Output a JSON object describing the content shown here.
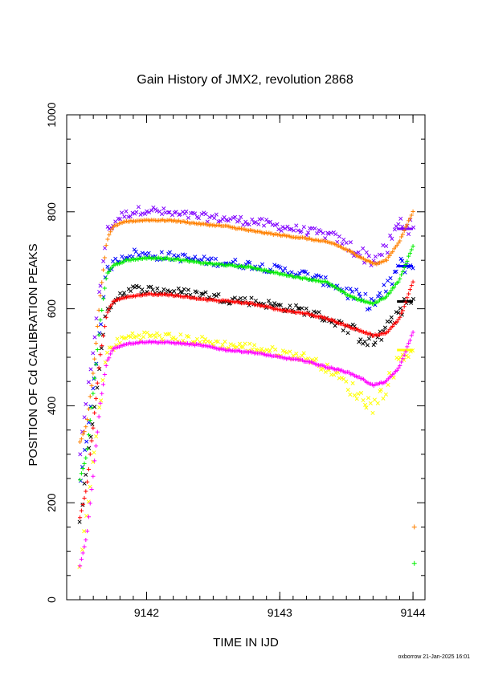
{
  "chart_data": {
    "type": "scatter",
    "title": "Gain History of JMX2, revolution 2868",
    "xlabel": "TIME IN IJD",
    "ylabel": "POSITION OF Cd CALIBRATION PEAKS",
    "xlim": [
      9141.4,
      9144.09
    ],
    "ylim": [
      0,
      1000
    ],
    "x_ticks": [
      9142,
      9143,
      9144
    ],
    "y_ticks": [
      0,
      200,
      400,
      600,
      800,
      1000
    ],
    "x_tick_labels": [
      "9142",
      "9143",
      "9144"
    ],
    "y_tick_labels": [
      "0",
      "200",
      "400",
      "600",
      "800",
      "1000"
    ],
    "grid": false,
    "series": [
      {
        "color": "#ff8000",
        "marker": "plus",
        "kind": "smooth",
        "points": [
          [
            9141.5,
            325
          ],
          [
            9141.55,
            360
          ],
          [
            9141.6,
            470
          ],
          [
            9141.65,
            620
          ],
          [
            9141.7,
            740
          ],
          [
            9141.75,
            770
          ],
          [
            9141.85,
            780
          ],
          [
            9142.0,
            783
          ],
          [
            9142.2,
            782
          ],
          [
            9142.4,
            775
          ],
          [
            9142.6,
            770
          ],
          [
            9142.8,
            760
          ],
          [
            9143.0,
            752
          ],
          [
            9143.2,
            745
          ],
          [
            9143.4,
            735
          ],
          [
            9143.55,
            715
          ],
          [
            9143.65,
            700
          ],
          [
            9143.72,
            692
          ],
          [
            9143.8,
            700
          ],
          [
            9143.9,
            740
          ],
          [
            9144.0,
            800
          ]
        ]
      },
      {
        "color": "#00ee00",
        "marker": "plus",
        "kind": "smooth",
        "points": [
          [
            9141.5,
            248
          ],
          [
            9141.55,
            300
          ],
          [
            9141.6,
            430
          ],
          [
            9141.65,
            570
          ],
          [
            9141.7,
            670
          ],
          [
            9141.75,
            690
          ],
          [
            9141.85,
            700
          ],
          [
            9142.0,
            705
          ],
          [
            9142.2,
            703
          ],
          [
            9142.4,
            695
          ],
          [
            9142.6,
            690
          ],
          [
            9142.8,
            685
          ],
          [
            9143.0,
            672
          ],
          [
            9143.2,
            662
          ],
          [
            9143.35,
            655
          ],
          [
            9143.5,
            630
          ],
          [
            9143.6,
            618
          ],
          [
            9143.7,
            610
          ],
          [
            9143.8,
            625
          ],
          [
            9143.9,
            660
          ],
          [
            9144.0,
            730
          ]
        ]
      },
      {
        "color": "#ff0000",
        "marker": "plus",
        "kind": "smooth",
        "points": [
          [
            9141.5,
            170
          ],
          [
            9141.55,
            230
          ],
          [
            9141.6,
            360
          ],
          [
            9141.65,
            500
          ],
          [
            9141.7,
            590
          ],
          [
            9141.75,
            615
          ],
          [
            9141.85,
            625
          ],
          [
            9142.0,
            630
          ],
          [
            9142.2,
            628
          ],
          [
            9142.4,
            620
          ],
          [
            9142.6,
            616
          ],
          [
            9142.8,
            610
          ],
          [
            9143.0,
            598
          ],
          [
            9143.2,
            590
          ],
          [
            9143.35,
            580
          ],
          [
            9143.5,
            565
          ],
          [
            9143.6,
            555
          ],
          [
            9143.7,
            545
          ],
          [
            9143.8,
            550
          ],
          [
            9143.9,
            580
          ],
          [
            9144.0,
            655
          ]
        ]
      },
      {
        "color": "#ff00ff",
        "marker": "plus",
        "kind": "smooth",
        "points": [
          [
            9141.5,
            70
          ],
          [
            9141.55,
            130
          ],
          [
            9141.6,
            260
          ],
          [
            9141.65,
            400
          ],
          [
            9141.7,
            490
          ],
          [
            9141.75,
            518
          ],
          [
            9141.85,
            528
          ],
          [
            9142.0,
            532
          ],
          [
            9142.2,
            530
          ],
          [
            9142.4,
            525
          ],
          [
            9142.6,
            515
          ],
          [
            9142.8,
            510
          ],
          [
            9143.0,
            500
          ],
          [
            9143.2,
            492
          ],
          [
            9143.35,
            480
          ],
          [
            9143.5,
            470
          ],
          [
            9143.6,
            458
          ],
          [
            9143.7,
            442
          ],
          [
            9143.8,
            450
          ],
          [
            9143.9,
            480
          ],
          [
            9144.0,
            552
          ]
        ]
      },
      {
        "color": "#8000ff",
        "marker": "cross",
        "kind": "scatter",
        "points": [
          [
            9141.5,
            300
          ],
          [
            9141.6,
            520
          ],
          [
            9141.7,
            760
          ],
          [
            9141.8,
            790
          ],
          [
            9141.9,
            800
          ],
          [
            9142.0,
            805
          ],
          [
            9142.2,
            795
          ],
          [
            9142.4,
            790
          ],
          [
            9142.6,
            785
          ],
          [
            9142.8,
            780
          ],
          [
            9143.0,
            770
          ],
          [
            9143.2,
            760
          ],
          [
            9143.4,
            750
          ],
          [
            9143.6,
            715
          ],
          [
            9143.7,
            700
          ],
          [
            9143.8,
            720
          ],
          [
            9143.9,
            780
          ],
          [
            9144.0,
            765
          ]
        ]
      },
      {
        "color": "#0000ff",
        "marker": "cross",
        "kind": "scatter",
        "points": [
          [
            9141.5,
            230
          ],
          [
            9141.6,
            440
          ],
          [
            9141.7,
            680
          ],
          [
            9141.8,
            705
          ],
          [
            9141.9,
            715
          ],
          [
            9142.0,
            710
          ],
          [
            9142.2,
            708
          ],
          [
            9142.4,
            700
          ],
          [
            9142.6,
            695
          ],
          [
            9142.8,
            690
          ],
          [
            9143.0,
            680
          ],
          [
            9143.2,
            670
          ],
          [
            9143.4,
            650
          ],
          [
            9143.6,
            620
          ],
          [
            9143.7,
            610
          ],
          [
            9143.8,
            640
          ],
          [
            9143.9,
            690
          ],
          [
            9144.0,
            688
          ]
        ]
      },
      {
        "color": "#000000",
        "marker": "cross",
        "kind": "scatter",
        "points": [
          [
            9141.5,
            160
          ],
          [
            9141.6,
            380
          ],
          [
            9141.7,
            600
          ],
          [
            9141.8,
            630
          ],
          [
            9141.9,
            640
          ],
          [
            9142.0,
            640
          ],
          [
            9142.2,
            635
          ],
          [
            9142.4,
            630
          ],
          [
            9142.6,
            620
          ],
          [
            9142.8,
            615
          ],
          [
            9143.0,
            605
          ],
          [
            9143.2,
            595
          ],
          [
            9143.4,
            575
          ],
          [
            9143.6,
            545
          ],
          [
            9143.7,
            530
          ],
          [
            9143.8,
            555
          ],
          [
            9143.9,
            600
          ],
          [
            9144.0,
            615
          ]
        ]
      },
      {
        "color": "#ffff00",
        "marker": "cross",
        "kind": "scatter",
        "points": [
          [
            9141.5,
            65
          ],
          [
            9141.6,
            290
          ],
          [
            9141.7,
            510
          ],
          [
            9141.8,
            535
          ],
          [
            9141.9,
            545
          ],
          [
            9142.0,
            545
          ],
          [
            9142.2,
            540
          ],
          [
            9142.4,
            535
          ],
          [
            9142.6,
            525
          ],
          [
            9142.8,
            520
          ],
          [
            9143.0,
            510
          ],
          [
            9143.2,
            500
          ],
          [
            9143.4,
            470
          ],
          [
            9143.6,
            420
          ],
          [
            9143.7,
            400
          ],
          [
            9143.8,
            440
          ],
          [
            9143.9,
            500
          ],
          [
            9144.0,
            515
          ]
        ]
      }
    ],
    "extra_points": [
      {
        "color": "#ff8000",
        "marker": "plus",
        "x": 9144.01,
        "y": 150
      },
      {
        "color": "#00ee00",
        "marker": "plus",
        "x": 9144.01,
        "y": 75
      }
    ]
  },
  "footer": {
    "text": "oxborrow 21-Jan-2025 16:01"
  }
}
